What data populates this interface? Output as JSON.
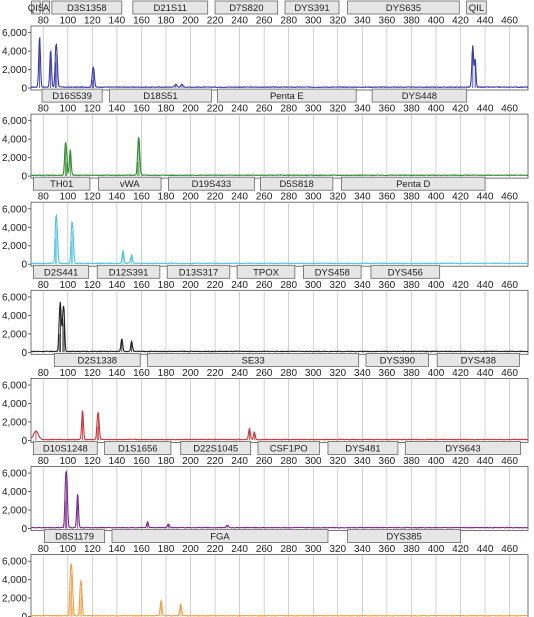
{
  "chart_data": [
    {
      "type": "line",
      "color": "#3a3aa8",
      "x_ticks": [
        80,
        100,
        120,
        140,
        160,
        180,
        200,
        220,
        240,
        260,
        280,
        300,
        320,
        340,
        360,
        380,
        400,
        420,
        440,
        460
      ],
      "y_ticks": [
        "6,000",
        "4,000",
        "2,000",
        "0"
      ],
      "xlim": [
        70,
        475
      ],
      "ylim": [
        0,
        6500
      ],
      "markers": [
        {
          "label": "QIS",
          "start": 70.5,
          "end": 77.5
        },
        {
          "label": "A",
          "start": 79.5,
          "end": 85
        },
        {
          "label": "D3S1358",
          "start": 87,
          "end": 144
        },
        {
          "label": "D21S11",
          "start": 153,
          "end": 214
        },
        {
          "label": "D7S820",
          "start": 220,
          "end": 271
        },
        {
          "label": "DYS391",
          "start": 277,
          "end": 321
        },
        {
          "label": "DYS635",
          "start": 328,
          "end": 419
        },
        {
          "label": "QIL",
          "start": 425,
          "end": 441
        }
      ],
      "peaks": [
        {
          "x": 77,
          "y": 5500,
          "w": 1.2
        },
        {
          "x": 86,
          "y": 4000,
          "w": 1.2
        },
        {
          "x": 91,
          "y": 3700,
          "w": 1.2
        },
        {
          "x": 90,
          "y": 2800,
          "w": 1.0
        },
        {
          "x": 121,
          "y": 2000,
          "w": 1.2
        },
        {
          "x": 120,
          "y": 900,
          "w": 1.0
        },
        {
          "x": 188,
          "y": 300,
          "w": 1.5
        },
        {
          "x": 193,
          "y": 300,
          "w": 1.5
        },
        {
          "x": 430,
          "y": 4500,
          "w": 1.3
        },
        {
          "x": 432,
          "y": 3000,
          "w": 1.0
        }
      ]
    },
    {
      "type": "line",
      "color": "#2e8b2e",
      "x_ticks": [
        80,
        100,
        120,
        140,
        160,
        180,
        200,
        220,
        240,
        260,
        280,
        300,
        320,
        340,
        360,
        380,
        400,
        420,
        440,
        460
      ],
      "y_ticks": [
        "6,000",
        "4,000",
        "2,000",
        "0"
      ],
      "xlim": [
        70,
        475
      ],
      "ylim": [
        0,
        6500
      ],
      "markers": [
        {
          "label": "D16S539",
          "start": 79,
          "end": 128
        },
        {
          "label": "D18S51",
          "start": 134,
          "end": 217
        },
        {
          "label": "Penta E",
          "start": 222,
          "end": 335
        },
        {
          "label": "DYS448",
          "start": 348,
          "end": 425
        }
      ],
      "peaks": [
        {
          "x": 98,
          "y": 3200,
          "w": 1.2
        },
        {
          "x": 102,
          "y": 2800,
          "w": 1.2
        },
        {
          "x": 99,
          "y": 1500,
          "w": 1.0
        },
        {
          "x": 158,
          "y": 3700,
          "w": 1.3
        },
        {
          "x": 157,
          "y": 1500,
          "w": 1.0
        }
      ]
    },
    {
      "type": "line",
      "color": "#52c4dc",
      "x_ticks": [
        80,
        100,
        120,
        140,
        160,
        180,
        200,
        220,
        240,
        260,
        280,
        300,
        320,
        340,
        360,
        380,
        400,
        420,
        440,
        460
      ],
      "y_ticks": [
        "6,000",
        "4,000",
        "2,000",
        "0"
      ],
      "xlim": [
        70,
        475
      ],
      "ylim": [
        0,
        6500
      ],
      "markers": [
        {
          "label": "TH01",
          "start": 72,
          "end": 118
        },
        {
          "label": "vWA",
          "start": 125,
          "end": 176
        },
        {
          "label": "D19S433",
          "start": 182,
          "end": 252
        },
        {
          "label": "D5S818",
          "start": 257,
          "end": 316
        },
        {
          "label": "Penta D",
          "start": 323,
          "end": 440
        }
      ],
      "peaks": [
        {
          "x": 91,
          "y": 4200,
          "w": 1.3
        },
        {
          "x": 104,
          "y": 3600,
          "w": 1.3
        },
        {
          "x": 90,
          "y": 2800,
          "w": 1.0
        },
        {
          "x": 103,
          "y": 2500,
          "w": 1.0
        },
        {
          "x": 145,
          "y": 1400,
          "w": 1.2
        },
        {
          "x": 152,
          "y": 900,
          "w": 1.2
        }
      ]
    },
    {
      "type": "line",
      "color": "#222222",
      "x_ticks": [
        80,
        100,
        120,
        140,
        160,
        180,
        200,
        220,
        240,
        260,
        280,
        300,
        320,
        340,
        360,
        380,
        400,
        420,
        440,
        460
      ],
      "y_ticks": [
        "6,000",
        "4,000",
        "2,000",
        "0"
      ],
      "xlim": [
        70,
        475
      ],
      "ylim": [
        0,
        6500
      ],
      "markers": [
        {
          "label": "D2S441",
          "start": 72,
          "end": 117
        },
        {
          "label": "D12S391",
          "start": 124,
          "end": 175
        },
        {
          "label": "D13S317",
          "start": 181,
          "end": 232
        },
        {
          "label": "TPOX",
          "start": 238,
          "end": 285
        },
        {
          "label": "DYS458",
          "start": 292,
          "end": 339
        },
        {
          "label": "DYS456",
          "start": 347,
          "end": 403
        }
      ],
      "peaks": [
        {
          "x": 94,
          "y": 4800,
          "w": 1.2
        },
        {
          "x": 96,
          "y": 3600,
          "w": 1.2
        },
        {
          "x": 93,
          "y": 2000,
          "w": 1.0
        },
        {
          "x": 97,
          "y": 3200,
          "w": 1.0
        },
        {
          "x": 144,
          "y": 1400,
          "w": 1.2
        },
        {
          "x": 152,
          "y": 1100,
          "w": 1.2
        }
      ]
    },
    {
      "type": "line",
      "color": "#c8363b",
      "x_ticks": [
        80,
        100,
        120,
        140,
        160,
        180,
        200,
        220,
        240,
        260,
        280,
        300,
        320,
        340,
        360,
        380,
        400,
        420,
        440,
        460
      ],
      "y_ticks": [
        "6,000",
        "4,000",
        "2,000",
        "0"
      ],
      "xlim": [
        70,
        475
      ],
      "ylim": [
        0,
        6500
      ],
      "markers": [
        {
          "label": "D2S1338",
          "start": 89,
          "end": 159
        },
        {
          "label": "SE33",
          "start": 165,
          "end": 337
        },
        {
          "label": "DYS390",
          "start": 343,
          "end": 394
        },
        {
          "label": "DYS438",
          "start": 401,
          "end": 468
        }
      ],
      "peaks": [
        {
          "x": 74,
          "y": 900,
          "w": 3.5
        },
        {
          "x": 112,
          "y": 3200,
          "w": 1.2
        },
        {
          "x": 125,
          "y": 2500,
          "w": 1.2
        },
        {
          "x": 124,
          "y": 1500,
          "w": 1.0
        },
        {
          "x": 248,
          "y": 1200,
          "w": 1.3
        },
        {
          "x": 252,
          "y": 800,
          "w": 1.2
        }
      ]
    },
    {
      "type": "line",
      "color": "#7a2a8a",
      "x_ticks": [
        80,
        100,
        120,
        140,
        160,
        180,
        200,
        220,
        240,
        260,
        280,
        300,
        320,
        340,
        360,
        380,
        400,
        420,
        440,
        460
      ],
      "y_ticks": [
        "6,000",
        "4,000",
        "2,000",
        "0"
      ],
      "xlim": [
        70,
        475
      ],
      "ylim": [
        0,
        6500
      ],
      "markers": [
        {
          "label": "D10S1248",
          "start": 72,
          "end": 124
        },
        {
          "label": "D1S1656",
          "start": 130,
          "end": 184
        },
        {
          "label": "D22S1045",
          "start": 192,
          "end": 249
        },
        {
          "label": "CSF1PO",
          "start": 255,
          "end": 305
        },
        {
          "label": "DYS481",
          "start": 312,
          "end": 369
        },
        {
          "label": "DYS643",
          "start": 375,
          "end": 469
        }
      ],
      "peaks": [
        {
          "x": 99,
          "y": 5200,
          "w": 1.3
        },
        {
          "x": 98,
          "y": 3000,
          "w": 1.0
        },
        {
          "x": 108,
          "y": 3700,
          "w": 1.2
        },
        {
          "x": 165,
          "y": 600,
          "w": 1.2
        },
        {
          "x": 182,
          "y": 400,
          "w": 1.3
        },
        {
          "x": 230,
          "y": 250,
          "w": 1.5
        }
      ]
    },
    {
      "type": "line",
      "color": "#f0a04a",
      "x_ticks": [
        80,
        100,
        120,
        140,
        160,
        180,
        200,
        220,
        240,
        260,
        280,
        300,
        320,
        340,
        360,
        380,
        400,
        420,
        440,
        460
      ],
      "y_ticks": [
        "6,000",
        "4,000",
        "2,000",
        "0"
      ],
      "xlim": [
        70,
        475
      ],
      "ylim": [
        0,
        6500
      ],
      "markers": [
        {
          "label": "D8S1179",
          "start": 81,
          "end": 130
        },
        {
          "label": "FGA",
          "start": 136,
          "end": 312
        },
        {
          "label": "DYS385",
          "start": 328,
          "end": 420
        }
      ],
      "peaks": [
        {
          "x": 103,
          "y": 4600,
          "w": 1.3
        },
        {
          "x": 102,
          "y": 2800,
          "w": 1.0
        },
        {
          "x": 111,
          "y": 3200,
          "w": 1.2
        },
        {
          "x": 110,
          "y": 2000,
          "w": 1.0
        },
        {
          "x": 176,
          "y": 1700,
          "w": 1.2
        },
        {
          "x": 192,
          "y": 1300,
          "w": 1.2
        },
        {
          "x": 104,
          "y": 1200,
          "w": 1.0
        }
      ]
    }
  ]
}
